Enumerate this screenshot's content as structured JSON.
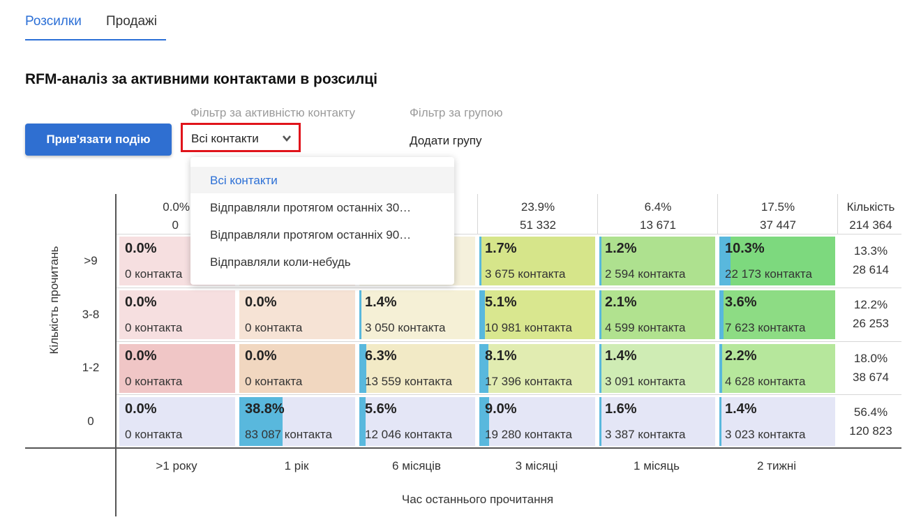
{
  "tabs": [
    {
      "label": "Розсилки",
      "active": true
    },
    {
      "label": "Продажі",
      "active": false
    }
  ],
  "title": "RFM-аналіз за активними контактами в розсилці",
  "bind_event_button": "Прив'язати подію",
  "filters": {
    "activity_label": "Фільтр за активністю контакту",
    "activity_value": "Всі контакти",
    "group_label": "Фільтр за групою",
    "group_value": "Додати групу",
    "dropdown_options": [
      "Всі контакти",
      "Відправляли протягом останніх 30…",
      "Відправляли протягом останніх 90…",
      "Відправляли коли-небудь"
    ]
  },
  "colors": {
    "accent": "#2b6fd6",
    "button": "#2f6fd1",
    "highlight_border": "#e0141b",
    "bar_fill": "#59b8dd"
  },
  "columns": [
    {
      "label": ">1 року",
      "pct": "0.0%",
      "count": "0"
    },
    {
      "label": "1 рік",
      "pct": "",
      "count": ""
    },
    {
      "label": "6 місяців",
      "pct": "",
      "count": ""
    },
    {
      "label": "3 місяці",
      "pct": "23.9%",
      "count": "51 332"
    },
    {
      "label": "1 місяць",
      "pct": "6.4%",
      "count": "13 671"
    },
    {
      "label": "2 тижні",
      "pct": "17.5%",
      "count": "37 447"
    }
  ],
  "totals": {
    "label": "Кількість",
    "value": "214 364"
  },
  "y_axis_label": "Кількість прочитань",
  "x_axis_label": "Час останнього прочитання",
  "rows": [
    {
      "label": ">9",
      "total_pct": "13.3%",
      "total_count": "28 614",
      "cells": [
        {
          "pct": "0.0%",
          "count": "0 контакта",
          "bar_fraction": 0,
          "color": "#f6dfe0"
        },
        {
          "pct": "",
          "count": "",
          "bar_fraction": 0,
          "color": "#f6e6dc"
        },
        {
          "pct": "",
          "count": "",
          "bar_fraction": 0,
          "color": "#f5f0dc"
        },
        {
          "pct": "1.7%",
          "count": "3 675 контакта",
          "bar_fraction": 0.017,
          "color": "#d6e58a"
        },
        {
          "pct": "1.2%",
          "count": "2 594 контакта",
          "bar_fraction": 0.012,
          "color": "#aee18f"
        },
        {
          "pct": "10.3%",
          "count": "22 173 контакта",
          "bar_fraction": 0.103,
          "color": "#7dd97e"
        }
      ]
    },
    {
      "label": "3-8",
      "total_pct": "12.2%",
      "total_count": "26 253",
      "cells": [
        {
          "pct": "0.0%",
          "count": "0 контакта",
          "bar_fraction": 0,
          "color": "#f6dfe0"
        },
        {
          "pct": "0.0%",
          "count": "0 контакта",
          "bar_fraction": 0,
          "color": "#f6e3d5"
        },
        {
          "pct": "1.4%",
          "count": "3 050 контакта",
          "bar_fraction": 0.014,
          "color": "#f5f0d6"
        },
        {
          "pct": "5.1%",
          "count": "10 981 контакта",
          "bar_fraction": 0.051,
          "color": "#d9e78f"
        },
        {
          "pct": "2.1%",
          "count": "4 599 контакта",
          "bar_fraction": 0.021,
          "color": "#b1e28f"
        },
        {
          "pct": "3.6%",
          "count": "7 623 контакта",
          "bar_fraction": 0.036,
          "color": "#8ddc84"
        }
      ]
    },
    {
      "label": "1-2",
      "total_pct": "18.0%",
      "total_count": "38 674",
      "cells": [
        {
          "pct": "0.0%",
          "count": "0 контакта",
          "bar_fraction": 0,
          "color": "#f0c6c6"
        },
        {
          "pct": "0.0%",
          "count": "0 контакта",
          "bar_fraction": 0,
          "color": "#f1d7c0"
        },
        {
          "pct": "6.3%",
          "count": "13 559 контакта",
          "bar_fraction": 0.063,
          "color": "#f2eac6"
        },
        {
          "pct": "8.1%",
          "count": "17 396 контакта",
          "bar_fraction": 0.081,
          "color": "#e1ecb1"
        },
        {
          "pct": "1.4%",
          "count": "3 091 контакта",
          "bar_fraction": 0.014,
          "color": "#cfecb4"
        },
        {
          "pct": "2.2%",
          "count": "4 628 контакта",
          "bar_fraction": 0.022,
          "color": "#b6e79c"
        }
      ]
    },
    {
      "label": "0",
      "total_pct": "56.4%",
      "total_count": "120 823",
      "cells": [
        {
          "pct": "0.0%",
          "count": "0 контакта",
          "bar_fraction": 0,
          "color": "#e4e6f6"
        },
        {
          "pct": "38.8%",
          "count": "83 087 контакта",
          "bar_fraction": 0.388,
          "color": "#e4e6f6"
        },
        {
          "pct": "5.6%",
          "count": "12 046 контакта",
          "bar_fraction": 0.056,
          "color": "#e4e6f6"
        },
        {
          "pct": "9.0%",
          "count": "19 280 контакта",
          "bar_fraction": 0.09,
          "color": "#e4e6f6"
        },
        {
          "pct": "1.6%",
          "count": "3 387 контакта",
          "bar_fraction": 0.016,
          "color": "#e4e6f6"
        },
        {
          "pct": "1.4%",
          "count": "3 023 контакта",
          "bar_fraction": 0.014,
          "color": "#e4e6f6"
        }
      ]
    }
  ]
}
